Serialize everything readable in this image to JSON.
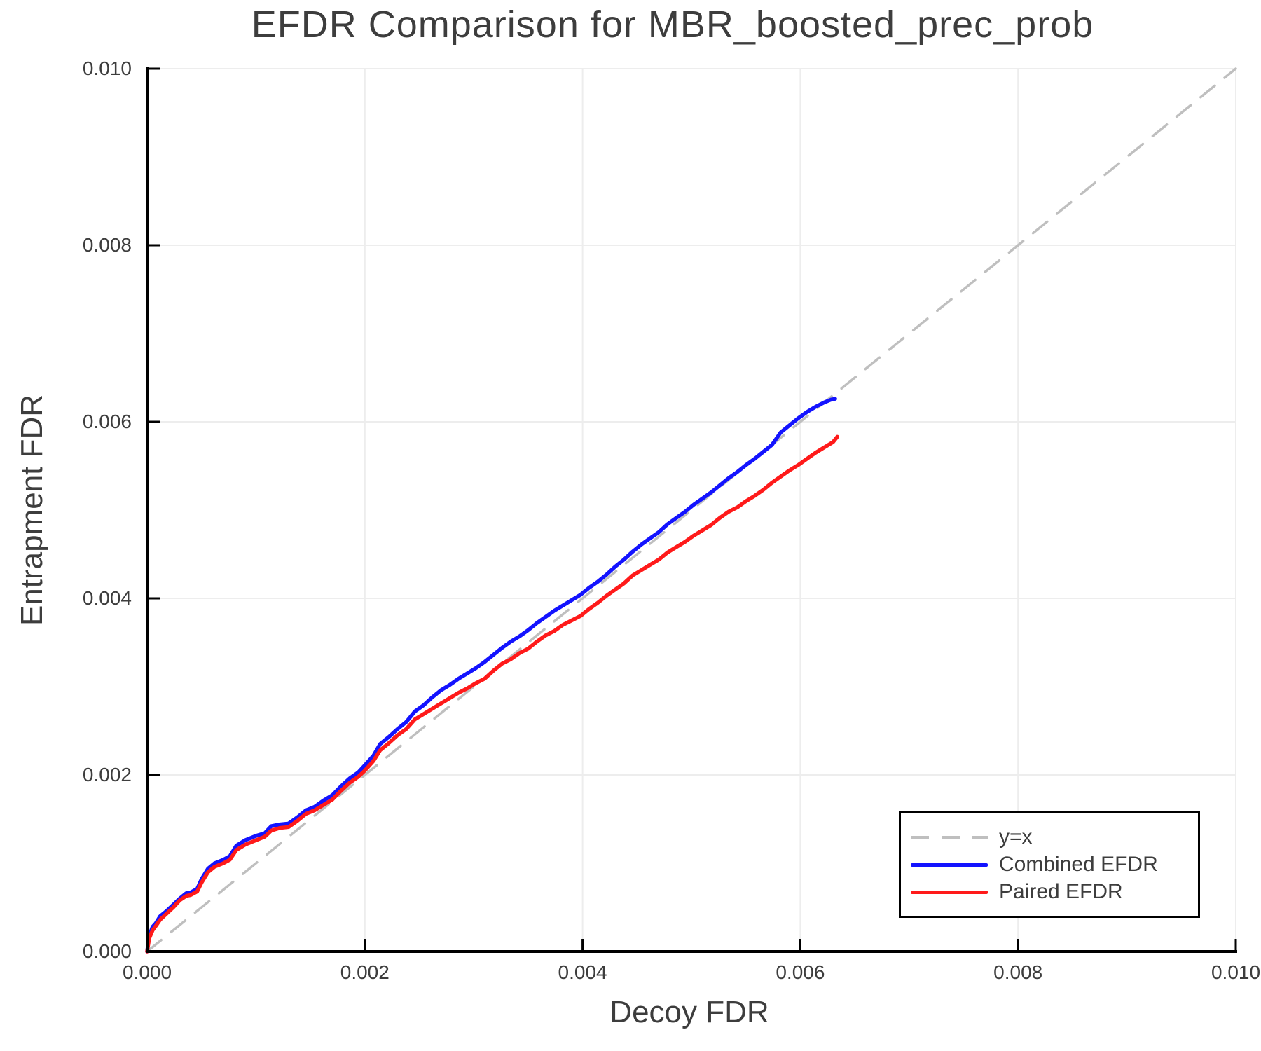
{
  "chart_data": {
    "type": "line",
    "title": "EFDR Comparison for MBR_boosted_prec_prob",
    "xlabel": "Decoy FDR",
    "ylabel": "Entrapment FDR",
    "xlim": [
      0.0,
      0.01
    ],
    "ylim": [
      0.0,
      0.01
    ],
    "xtick_values": [
      0.0,
      0.002,
      0.004,
      0.006,
      0.008,
      0.01
    ],
    "xtick_labels": [
      "0.000",
      "0.002",
      "0.004",
      "0.006",
      "0.008",
      "0.010"
    ],
    "ytick_values": [
      0.0,
      0.002,
      0.004,
      0.006,
      0.008,
      0.01
    ],
    "ytick_labels": [
      "0.000",
      "0.002",
      "0.004",
      "0.006",
      "0.008",
      "0.010"
    ],
    "grid": true,
    "legend_position": "bottom-right",
    "colors": {
      "grid": "#ededed",
      "axis": "#000000",
      "text": "#3d3d3d",
      "diagonal": "#bfbfbf",
      "combined": "#1313ff",
      "paired": "#ff1a1a"
    },
    "series": [
      {
        "name": "y=x",
        "style": "dashed",
        "color": "#bfbfbf",
        "points": [
          [
            0.0,
            0.0
          ],
          [
            0.01,
            0.01
          ]
        ]
      },
      {
        "name": "Combined EFDR",
        "style": "solid",
        "color": "#1313ff",
        "points": [
          [
            0.0,
            0.0
          ],
          [
            2e-05,
            0.00018
          ],
          [
            5e-05,
            0.00028
          ],
          [
            8e-05,
            0.00032
          ],
          [
            0.00012,
            0.0004
          ],
          [
            0.00018,
            0.00046
          ],
          [
            0.00024,
            0.00053
          ],
          [
            0.0003,
            0.0006
          ],
          [
            0.00036,
            0.00066
          ],
          [
            0.0004,
            0.00067
          ],
          [
            0.00046,
            0.00071
          ],
          [
            0.0005,
            0.00082
          ],
          [
            0.00056,
            0.00094
          ],
          [
            0.00062,
            0.001
          ],
          [
            0.0007,
            0.00104
          ],
          [
            0.00076,
            0.00108
          ],
          [
            0.00082,
            0.0012
          ],
          [
            0.0009,
            0.00126
          ],
          [
            0.001,
            0.00131
          ],
          [
            0.00108,
            0.00134
          ],
          [
            0.00114,
            0.00142
          ],
          [
            0.00122,
            0.00144
          ],
          [
            0.0013,
            0.00145
          ],
          [
            0.00138,
            0.00152
          ],
          [
            0.00146,
            0.0016
          ],
          [
            0.00154,
            0.00164
          ],
          [
            0.00162,
            0.00171
          ],
          [
            0.0017,
            0.00177
          ],
          [
            0.00178,
            0.00187
          ],
          [
            0.00186,
            0.00196
          ],
          [
            0.00194,
            0.00203
          ],
          [
            0.002,
            0.00211
          ],
          [
            0.00208,
            0.00222
          ],
          [
            0.00214,
            0.00235
          ],
          [
            0.00222,
            0.00243
          ],
          [
            0.0023,
            0.00252
          ],
          [
            0.00238,
            0.0026
          ],
          [
            0.00246,
            0.00272
          ],
          [
            0.00254,
            0.00279
          ],
          [
            0.00262,
            0.00288
          ],
          [
            0.0027,
            0.00296
          ],
          [
            0.00278,
            0.00302
          ],
          [
            0.00286,
            0.00309
          ],
          [
            0.00294,
            0.00315
          ],
          [
            0.00302,
            0.00321
          ],
          [
            0.0031,
            0.00328
          ],
          [
            0.00318,
            0.00336
          ],
          [
            0.00326,
            0.00344
          ],
          [
            0.00334,
            0.00351
          ],
          [
            0.00342,
            0.00357
          ],
          [
            0.0035,
            0.00364
          ],
          [
            0.00358,
            0.00372
          ],
          [
            0.00366,
            0.00379
          ],
          [
            0.00374,
            0.00386
          ],
          [
            0.00382,
            0.00392
          ],
          [
            0.0039,
            0.00398
          ],
          [
            0.00398,
            0.00404
          ],
          [
            0.00406,
            0.00412
          ],
          [
            0.00414,
            0.00419
          ],
          [
            0.00422,
            0.00427
          ],
          [
            0.0043,
            0.00436
          ],
          [
            0.00438,
            0.00444
          ],
          [
            0.00446,
            0.00453
          ],
          [
            0.00454,
            0.00461
          ],
          [
            0.00462,
            0.00468
          ],
          [
            0.0047,
            0.00475
          ],
          [
            0.00478,
            0.00484
          ],
          [
            0.00486,
            0.00491
          ],
          [
            0.00494,
            0.00498
          ],
          [
            0.00502,
            0.00506
          ],
          [
            0.0051,
            0.00513
          ],
          [
            0.00518,
            0.0052
          ],
          [
            0.00526,
            0.00528
          ],
          [
            0.00534,
            0.00536
          ],
          [
            0.00542,
            0.00543
          ],
          [
            0.0055,
            0.00551
          ],
          [
            0.00558,
            0.00558
          ],
          [
            0.00566,
            0.00566
          ],
          [
            0.00574,
            0.00574
          ],
          [
            0.00582,
            0.00588
          ],
          [
            0.0059,
            0.00596
          ],
          [
            0.00598,
            0.00604
          ],
          [
            0.00606,
            0.00611
          ],
          [
            0.00614,
            0.00617
          ],
          [
            0.00622,
            0.00622
          ],
          [
            0.00628,
            0.00625
          ],
          [
            0.00632,
            0.00626
          ]
        ]
      },
      {
        "name": "Paired EFDR",
        "style": "solid",
        "color": "#ff1a1a",
        "points": [
          [
            0.0,
            0.0
          ],
          [
            2e-05,
            0.00015
          ],
          [
            5e-05,
            0.00024
          ],
          [
            8e-05,
            0.00029
          ],
          [
            0.00012,
            0.00036
          ],
          [
            0.00018,
            0.00043
          ],
          [
            0.00024,
            0.0005
          ],
          [
            0.0003,
            0.00058
          ],
          [
            0.00036,
            0.00063
          ],
          [
            0.0004,
            0.00064
          ],
          [
            0.00046,
            0.00068
          ],
          [
            0.0005,
            0.00078
          ],
          [
            0.00056,
            0.0009
          ],
          [
            0.00062,
            0.00096
          ],
          [
            0.0007,
            0.001
          ],
          [
            0.00076,
            0.00104
          ],
          [
            0.00082,
            0.00115
          ],
          [
            0.0009,
            0.00121
          ],
          [
            0.001,
            0.00126
          ],
          [
            0.00108,
            0.0013
          ],
          [
            0.00114,
            0.00137
          ],
          [
            0.00122,
            0.0014
          ],
          [
            0.0013,
            0.00141
          ],
          [
            0.00138,
            0.00148
          ],
          [
            0.00146,
            0.00156
          ],
          [
            0.00154,
            0.0016
          ],
          [
            0.00162,
            0.00166
          ],
          [
            0.0017,
            0.00172
          ],
          [
            0.00178,
            0.00182
          ],
          [
            0.00186,
            0.00191
          ],
          [
            0.00194,
            0.00198
          ],
          [
            0.002,
            0.00205
          ],
          [
            0.00208,
            0.00216
          ],
          [
            0.00214,
            0.00228
          ],
          [
            0.00222,
            0.00236
          ],
          [
            0.0023,
            0.00245
          ],
          [
            0.00238,
            0.00252
          ],
          [
            0.00246,
            0.00263
          ],
          [
            0.00254,
            0.00269
          ],
          [
            0.00262,
            0.00275
          ],
          [
            0.0027,
            0.00281
          ],
          [
            0.00278,
            0.00287
          ],
          [
            0.00286,
            0.00293
          ],
          [
            0.00294,
            0.00298
          ],
          [
            0.00302,
            0.00304
          ],
          [
            0.0031,
            0.00309
          ],
          [
            0.00318,
            0.00318
          ],
          [
            0.00326,
            0.00326
          ],
          [
            0.00334,
            0.00331
          ],
          [
            0.00342,
            0.00338
          ],
          [
            0.0035,
            0.00343
          ],
          [
            0.00358,
            0.00351
          ],
          [
            0.00366,
            0.00358
          ],
          [
            0.00374,
            0.00363
          ],
          [
            0.00382,
            0.0037
          ],
          [
            0.0039,
            0.00375
          ],
          [
            0.00398,
            0.0038
          ],
          [
            0.00406,
            0.00388
          ],
          [
            0.00414,
            0.00395
          ],
          [
            0.00422,
            0.00403
          ],
          [
            0.0043,
            0.0041
          ],
          [
            0.00438,
            0.00417
          ],
          [
            0.00446,
            0.00426
          ],
          [
            0.00454,
            0.00432
          ],
          [
            0.00462,
            0.00438
          ],
          [
            0.0047,
            0.00444
          ],
          [
            0.00478,
            0.00452
          ],
          [
            0.00486,
            0.00458
          ],
          [
            0.00494,
            0.00464
          ],
          [
            0.00502,
            0.00471
          ],
          [
            0.0051,
            0.00477
          ],
          [
            0.00518,
            0.00483
          ],
          [
            0.00526,
            0.00491
          ],
          [
            0.00534,
            0.00498
          ],
          [
            0.00542,
            0.00503
          ],
          [
            0.0055,
            0.0051
          ],
          [
            0.00558,
            0.00516
          ],
          [
            0.00566,
            0.00523
          ],
          [
            0.00574,
            0.00531
          ],
          [
            0.00582,
            0.00538
          ],
          [
            0.0059,
            0.00545
          ],
          [
            0.00598,
            0.00551
          ],
          [
            0.00606,
            0.00558
          ],
          [
            0.00614,
            0.00565
          ],
          [
            0.00622,
            0.00571
          ],
          [
            0.0063,
            0.00577
          ],
          [
            0.00634,
            0.00583
          ]
        ]
      }
    ]
  }
}
